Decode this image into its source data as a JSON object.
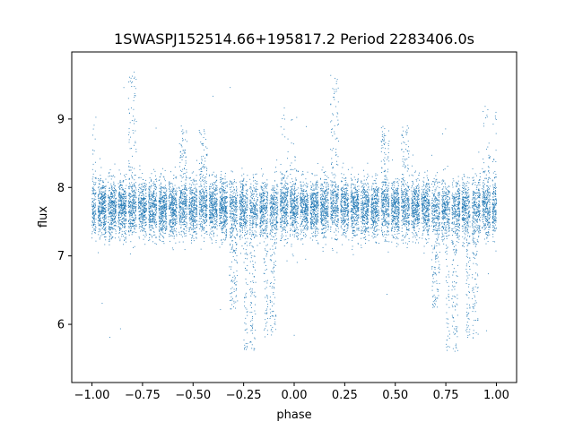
{
  "chart_data": {
    "type": "scatter",
    "title": "1SWASPJ152514.66+195817.2 Period 2283406.0s",
    "xlabel": "phase",
    "ylabel": "flux",
    "xlim": [
      -1.1,
      1.1
    ],
    "ylim": [
      5.15,
      9.98
    ],
    "xticks": [
      -1.0,
      -0.75,
      -0.5,
      -0.25,
      0.0,
      0.25,
      0.5,
      0.75,
      1.0
    ],
    "xtick_labels": [
      "−1.00",
      "−0.75",
      "−0.50",
      "−0.25",
      "0.00",
      "0.25",
      "0.50",
      "0.75",
      "1.00"
    ],
    "yticks": [
      6,
      7,
      8,
      9
    ],
    "ytick_labels": [
      "6",
      "7",
      "8",
      "9"
    ],
    "grid": false,
    "legend": "none",
    "point_color": "#1f77b4",
    "point_style": "small dots, dense (thousands of points)",
    "baseline_flux": 7.7,
    "typical_scatter": 0.3,
    "phase_folded": true,
    "note": "phase range -1 to 1 shows the light curve twice (pattern repeats with period 1)",
    "points_per_unit_phase": 6500,
    "dips": [
      {
        "phase_center": -0.3,
        "min_flux": 6.2
      },
      {
        "phase_center": -0.22,
        "min_flux": 5.6
      },
      {
        "phase_center": -0.12,
        "min_flux": 5.8
      },
      {
        "phase_center": 0.7,
        "min_flux": 6.2
      },
      {
        "phase_center": 0.78,
        "min_flux": 5.6
      },
      {
        "phase_center": 0.88,
        "min_flux": 5.8
      }
    ],
    "bright_streaks": [
      {
        "phase_center": -0.55,
        "max_flux": 8.9
      },
      {
        "phase_center": -0.45,
        "max_flux": 8.9
      },
      {
        "phase_center": -0.8,
        "max_flux": 9.7
      },
      {
        "phase_center": 0.0,
        "max_flux": 9.1
      },
      {
        "phase_center": 0.45,
        "max_flux": 8.9
      },
      {
        "phase_center": 0.55,
        "max_flux": 8.9
      },
      {
        "phase_center": 0.2,
        "max_flux": 9.7
      },
      {
        "phase_center": 0.95,
        "max_flux": 9.2
      }
    ]
  }
}
